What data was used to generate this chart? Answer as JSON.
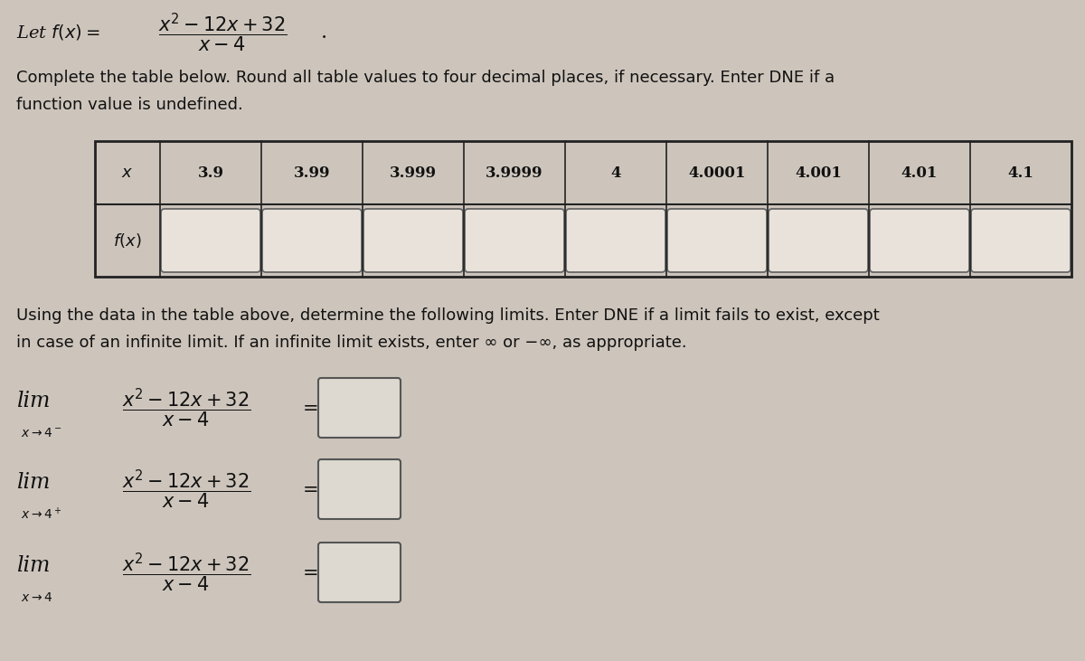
{
  "background_color": "#cdc5bc",
  "text_color": "#111111",
  "table_header_bg": "#cdc5bc",
  "table_data_bg": "#cdc5bc",
  "input_box_bg": "#e8e2da",
  "input_box_edge": "#666666",
  "table_border_color": "#222222",
  "ans_box_bg": "#ddd8d0",
  "ans_box_edge": "#555555",
  "figsize": [
    12.0,
    7.31
  ],
  "dpi": 100,
  "table_x_labels": [
    "x",
    "3.9",
    "3.99",
    "3.999",
    "3.9999",
    "4",
    "4.0001",
    "4.001",
    "4.01",
    "4.1"
  ],
  "instruction1": "Complete the table below. Round all table values to four decimal places, if necessary. Enter DNE if a",
  "instruction2": "function value is undefined.",
  "instruction3": "Using the data in the table above, determine the following limits. Enter DNE if a limit fails to exist, except",
  "instruction4": "in case of an infinite limit. If an infinite limit exists, enter ∞ or −∞, as appropriate."
}
